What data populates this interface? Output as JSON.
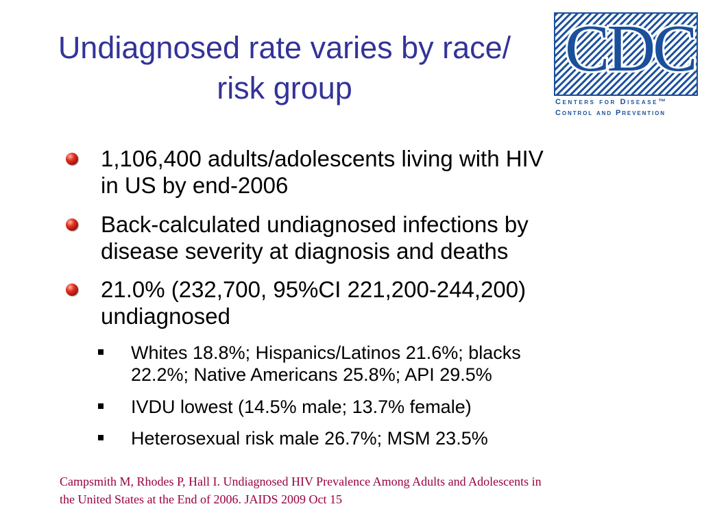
{
  "slide": {
    "title_line1": "Undiagnosed rate varies by race/",
    "title_line2": "risk group",
    "logo": {
      "letters": "CDC",
      "tagline_line1": "Centers for Disease™",
      "tagline_line2": "Control and Prevention",
      "color": "#1a4f9c"
    },
    "bullets": [
      {
        "line1": "1,106,400 adults/adolescents living with HIV",
        "line2": "in US by end-2006"
      },
      {
        "line1": "Back-calculated undiagnosed infections by",
        "line2": "disease severity at diagnosis and deaths"
      },
      {
        "line1": "21.0% (232,700, 95%CI 221,200-244,200)",
        "line2": "undiagnosed"
      }
    ],
    "sub_bullets": [
      {
        "line1": "Whites 18.8%; Hispanics/Latinos 21.6%; blacks",
        "line2": "22.2%; Native Americans 25.8%; API 29.5%"
      },
      {
        "line1": "IVDU lowest (14.5% male; 13.7% female)"
      },
      {
        "line1": "Heterosexual risk male 26.7%; MSM 23.5%"
      }
    ],
    "citation_line1": "Campsmith M, Rhodes P, Hall I.  Undiagnosed HIV Prevalence Among Adults and Adolescents in",
    "citation_line2": "the United States at the End of 2006.  JAIDS 2009 Oct 15",
    "colors": {
      "title": "#333399",
      "citation": "#99003f",
      "bullet": "#e2301e"
    }
  }
}
